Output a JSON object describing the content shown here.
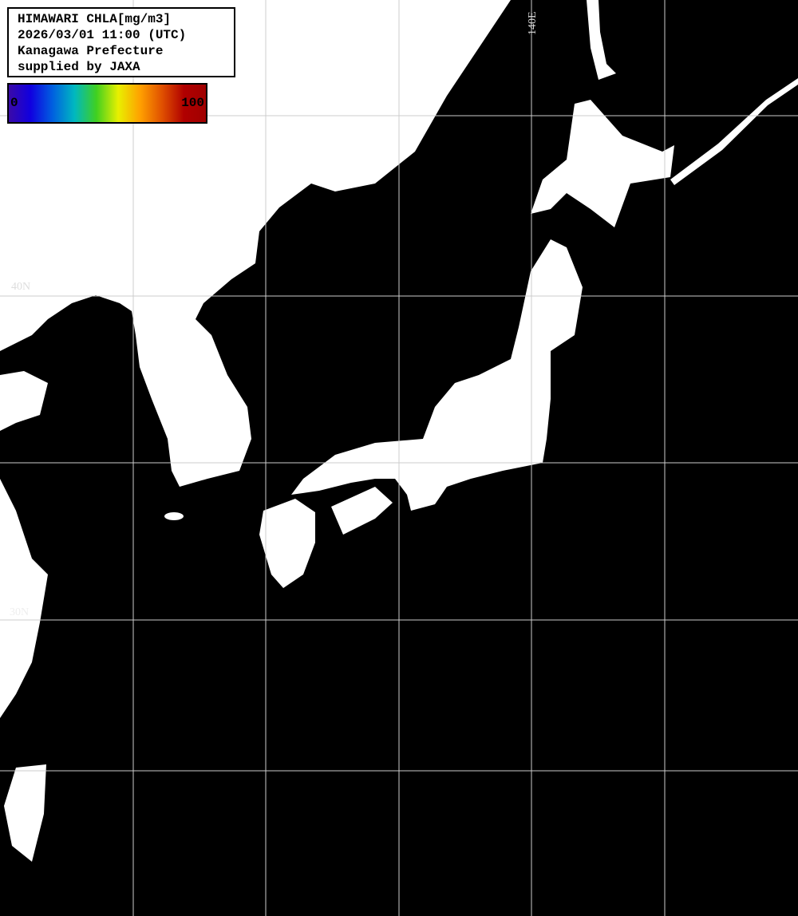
{
  "header": {
    "lines": [
      "HIMAWARI CHLA[mg/m3]",
      "2026/03/01 11:00 (UTC)",
      "Kanagawa Prefecture",
      "supplied by JAXA"
    ]
  },
  "colorbar": {
    "min_label": "0",
    "max_label": "100",
    "colors": [
      "#3a0aa8",
      "#1000e0",
      "#0060e0",
      "#00b8c0",
      "#40d020",
      "#e8f000",
      "#ffa000",
      "#e05000",
      "#b00000",
      "#a00000"
    ]
  },
  "grid_labels": {
    "lon_140": "140E",
    "lat_40": "40N",
    "lat_30": "30N"
  },
  "colors": {
    "land": "#ffffff",
    "ocean_no_data": "#000000",
    "grid": "#cccccc"
  }
}
